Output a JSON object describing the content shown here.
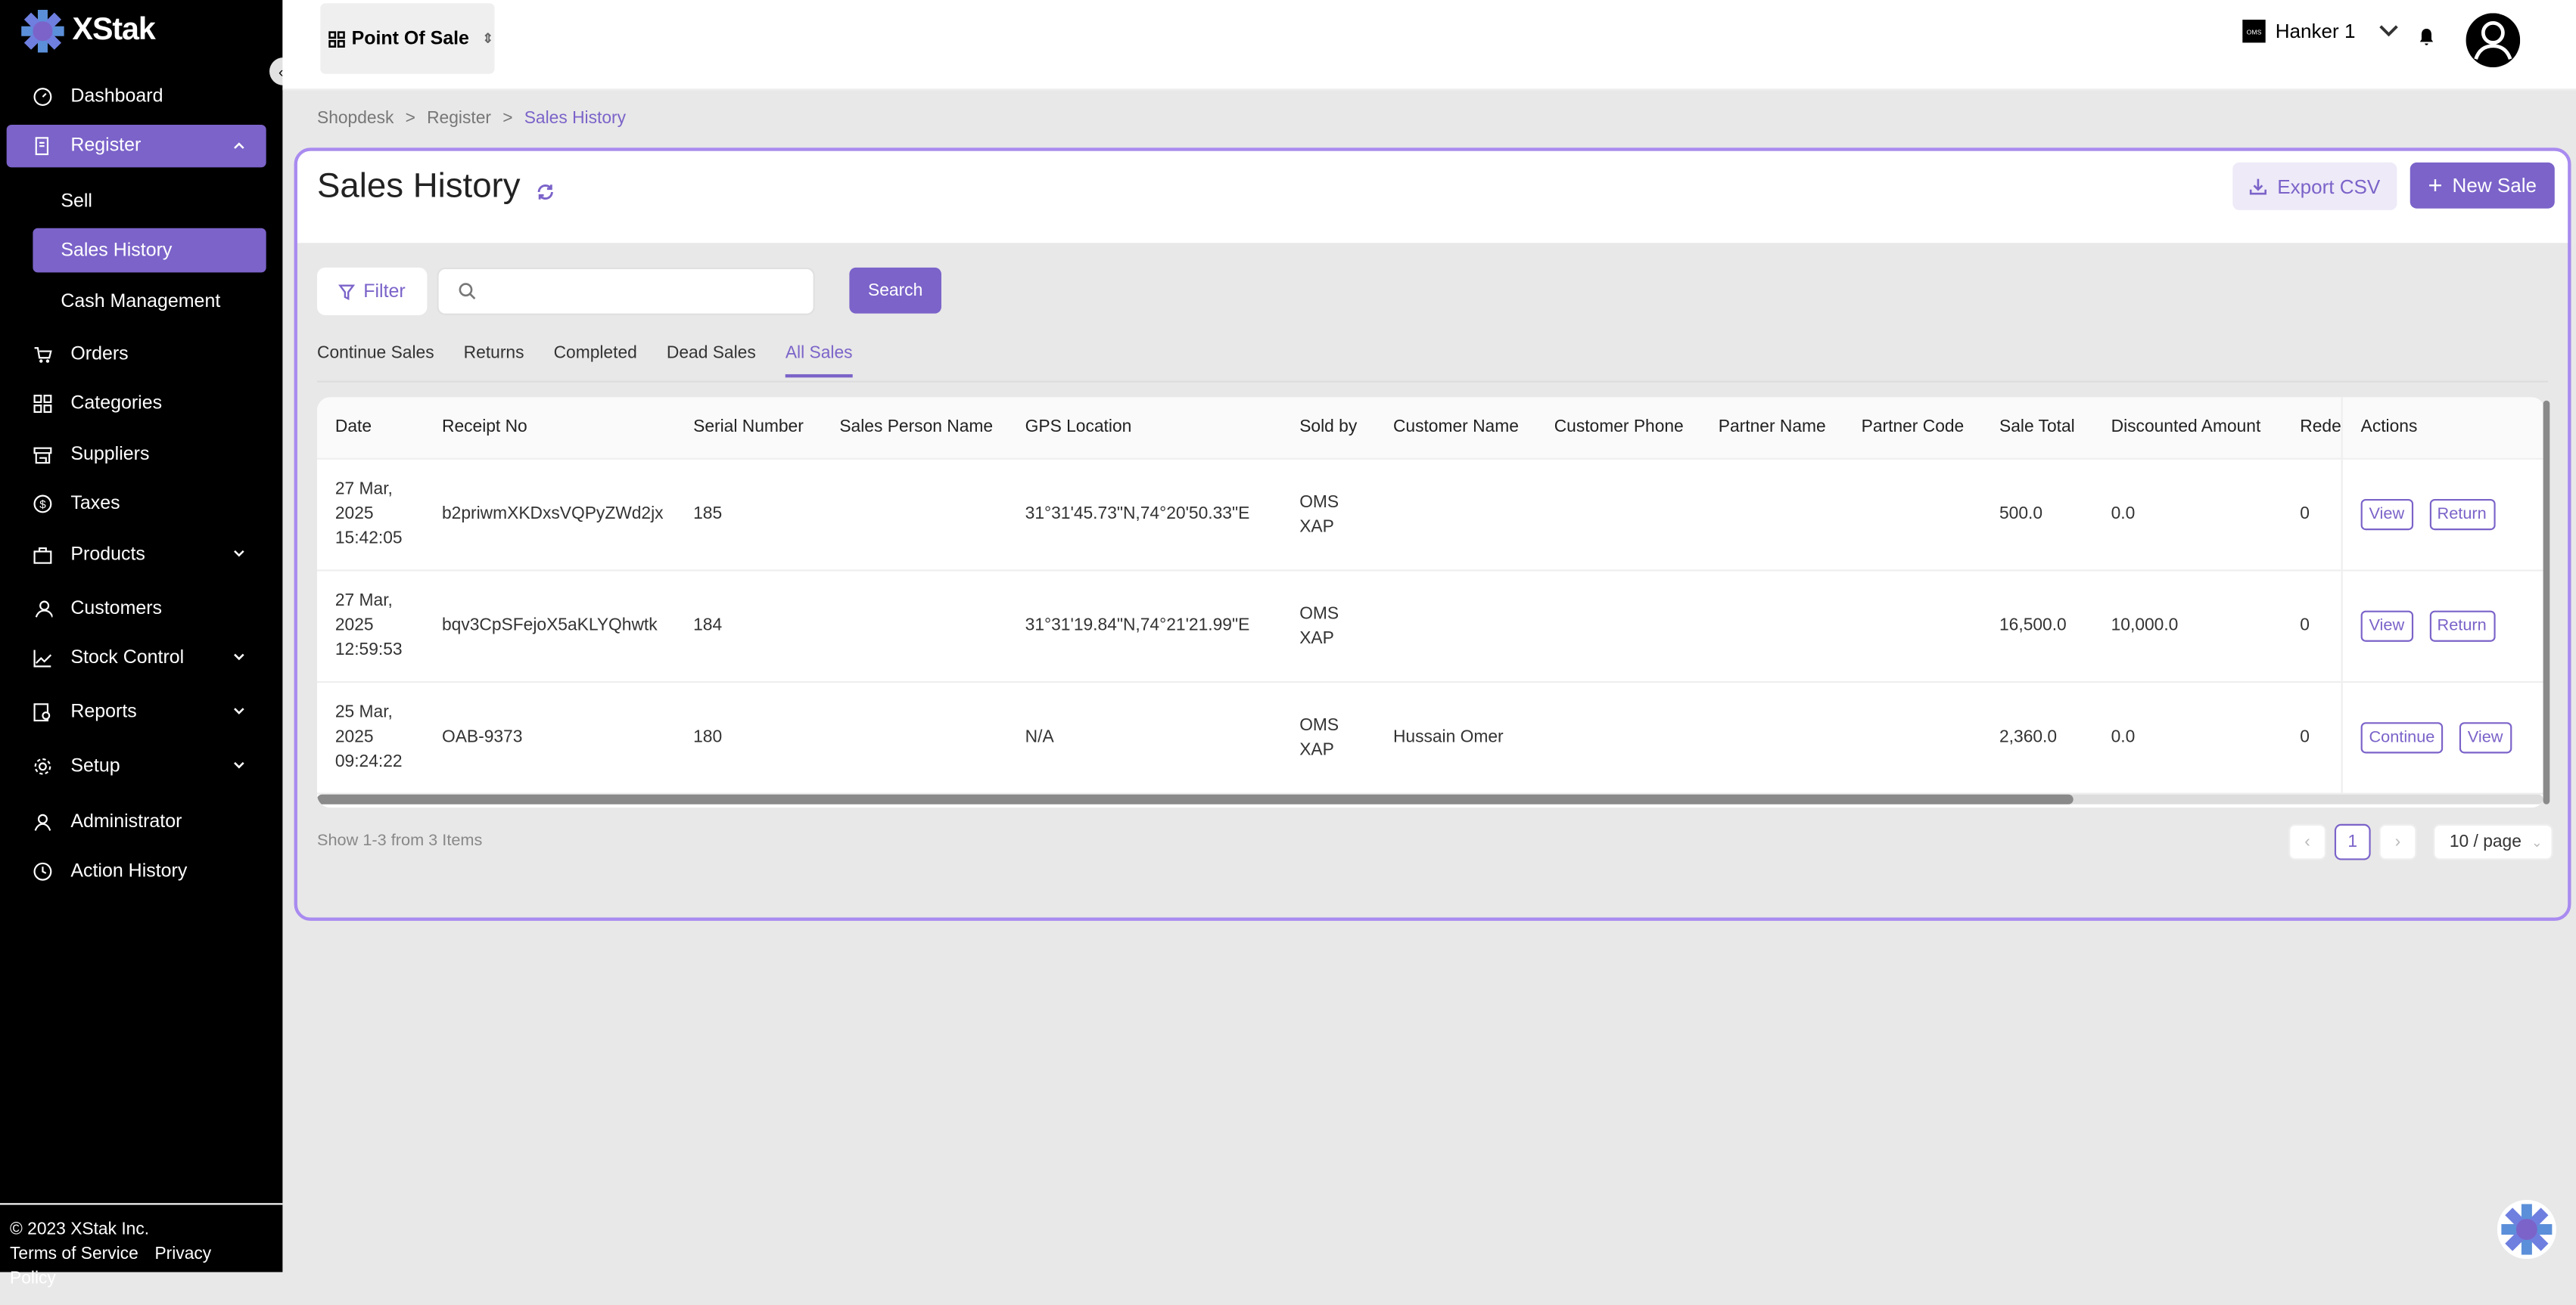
{
  "brand": {
    "name": "XStak",
    "accent": "#7b63c9"
  },
  "sidebar": {
    "items": [
      {
        "label": "Dashboard",
        "icon": "dashboard-icon"
      },
      {
        "label": "Register",
        "icon": "register-icon",
        "expanded": true,
        "children": [
          {
            "label": "Sell"
          },
          {
            "label": "Sales History",
            "active": true
          },
          {
            "label": "Cash Management"
          }
        ]
      },
      {
        "label": "Orders",
        "icon": "cart-icon"
      },
      {
        "label": "Categories",
        "icon": "grid-icon"
      },
      {
        "label": "Suppliers",
        "icon": "store-icon"
      },
      {
        "label": "Taxes",
        "icon": "dollar-icon"
      },
      {
        "label": "Products",
        "icon": "bag-icon",
        "has_children": true
      },
      {
        "label": "Customers",
        "icon": "users-icon"
      },
      {
        "label": "Stock Control",
        "icon": "chart-icon",
        "has_children": true
      },
      {
        "label": "Reports",
        "icon": "report-icon",
        "has_children": true
      },
      {
        "label": "Setup",
        "icon": "gear-icon",
        "has_children": true
      },
      {
        "label": "Administrator",
        "icon": "user-icon"
      },
      {
        "label": "Action History",
        "icon": "history-icon"
      }
    ],
    "footer": {
      "copyright": "© 2023 XStak Inc.",
      "terms": "Terms of Service",
      "privacy": "Privacy Policy"
    }
  },
  "header": {
    "app_switcher": "Point Of Sale",
    "store_name": "Hanker 1",
    "store_logo_text": "OMS"
  },
  "breadcrumb": [
    "Shopdesk",
    "Register",
    "Sales History"
  ],
  "page": {
    "title": "Sales History",
    "export_label": "Export CSV",
    "new_sale_label": "New Sale"
  },
  "toolbar": {
    "filter_label": "Filter",
    "search_placeholder": "",
    "search_value": "",
    "search_label": "Search"
  },
  "tabs": [
    {
      "label": "Continue Sales"
    },
    {
      "label": "Returns"
    },
    {
      "label": "Completed"
    },
    {
      "label": "Dead Sales"
    },
    {
      "label": "All Sales",
      "active": true
    }
  ],
  "table": {
    "columns": [
      "Date",
      "Receipt No",
      "Serial Number",
      "Sales Person Name",
      "GPS Location",
      "Sold by",
      "Customer Name",
      "Customer Phone",
      "Partner Name",
      "Partner Code",
      "Sale Total",
      "Discounted Amount",
      "Redee",
      "Actions"
    ],
    "rows": [
      {
        "cells": [
          "27 Mar, 2025 15:42:05",
          "b2priwmXKDxsVQPyZWd2jx",
          "185",
          "",
          "31°31'45.73\"N,74°20'50.33\"E",
          "OMS XAP",
          "",
          "",
          "",
          "",
          "500.0",
          "0.0",
          "0"
        ],
        "actions": [
          "View",
          "Return"
        ]
      },
      {
        "cells": [
          "27 Mar, 2025 12:59:53",
          "bqv3CpSFejoX5aKLYQhwtk",
          "184",
          "",
          "31°31'19.84\"N,74°21'21.99\"E",
          "OMS XAP",
          "",
          "",
          "",
          "",
          "16,500.0",
          "10,000.0",
          "0"
        ],
        "actions": [
          "View",
          "Return"
        ]
      },
      {
        "cells": [
          "25 Mar, 2025 09:24:22",
          "OAB-9373",
          "180",
          "",
          "N/A",
          "OMS XAP",
          "Hussain Omer",
          "",
          "",
          "",
          "2,360.0",
          "0.0",
          "0"
        ],
        "actions": [
          "Continue",
          "View"
        ]
      }
    ]
  },
  "pagination": {
    "summary": "Show 1-3 from 3 Items",
    "current_page": "1",
    "page_size": "10 / page"
  }
}
